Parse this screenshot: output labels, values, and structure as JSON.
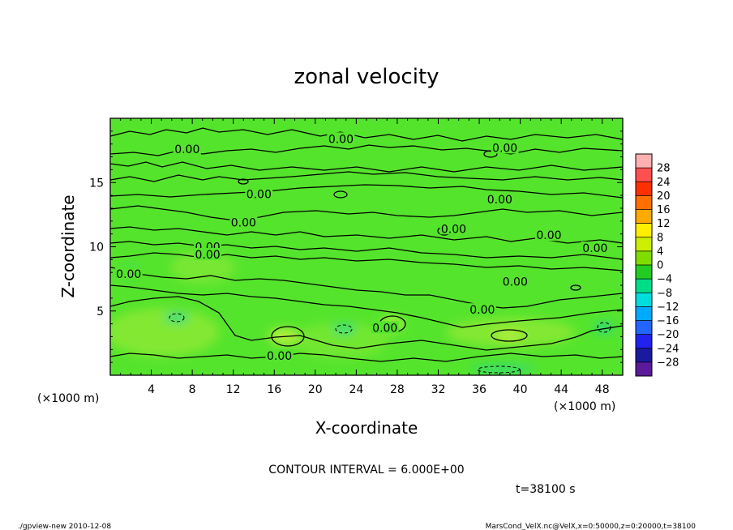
{
  "chart_data": {
    "type": "heatmap",
    "title": "zonal velocity",
    "xlabel": "X-coordinate",
    "ylabel": "Z-coordinate",
    "x_unit": "(×1000 m)",
    "z_unit": "(×1000 m)",
    "xlim": [
      0,
      50
    ],
    "ylim": [
      0,
      20
    ],
    "x_ticks": [
      4,
      8,
      12,
      16,
      20,
      24,
      28,
      32,
      36,
      40,
      44,
      48
    ],
    "y_ticks": [
      5,
      10,
      15
    ],
    "colorbar": {
      "levels": [
        28,
        24,
        20,
        16,
        12,
        8,
        4,
        0,
        -4,
        -8,
        -12,
        -16,
        -20,
        -24,
        -28
      ],
      "colors": [
        "#ffb0b0",
        "#ff5050",
        "#ff3000",
        "#ff7000",
        "#ffaa00",
        "#ffee00",
        "#ccee00",
        "#80dd00",
        "#22cc22",
        "#00dd88",
        "#00dddd",
        "#00aaff",
        "#2266ff",
        "#2222ee",
        "#1a1aa0",
        "#5a1a9a"
      ]
    },
    "contour_labels": [
      {
        "text": "0.00",
        "x": 7.5,
        "z": 17.6
      },
      {
        "text": "0.00",
        "x": 22.5,
        "z": 18.4
      },
      {
        "text": "0.00",
        "x": 38.5,
        "z": 17.7
      },
      {
        "text": "0.00",
        "x": 14.5,
        "z": 14.1
      },
      {
        "text": "0.00",
        "x": 38.0,
        "z": 13.7
      },
      {
        "text": "0.00",
        "x": 13.0,
        "z": 11.9
      },
      {
        "text": "0.00",
        "x": 33.5,
        "z": 11.4
      },
      {
        "text": "0.00",
        "x": 42.8,
        "z": 10.9
      },
      {
        "text": "0.00",
        "x": 9.5,
        "z": 10.0
      },
      {
        "text": "0.00",
        "x": 9.5,
        "z": 9.4
      },
      {
        "text": "0.00",
        "x": 47.3,
        "z": 9.9
      },
      {
        "text": "0.00",
        "x": 1.8,
        "z": 7.9
      },
      {
        "text": "0.00",
        "x": 39.5,
        "z": 7.3
      },
      {
        "text": "0.00",
        "x": 36.3,
        "z": 5.1
      },
      {
        "text": "0.00",
        "x": 26.8,
        "z": 3.7
      },
      {
        "text": "0.00",
        "x": 16.5,
        "z": 1.5
      }
    ],
    "contour_interval_text": "CONTOUR INTERVAL = 6.000E+00",
    "time_text": "t=38100 s"
  },
  "footer": {
    "left": "./gpview-new  2010-12-08",
    "right": "MarsCond_VelX.nc@VelX,x=0:50000,z=0:20000,t=38100"
  },
  "colors": {
    "field_base": "#55e42c",
    "field_light": "#a5f03a",
    "field_cyan": "#28d98c"
  }
}
